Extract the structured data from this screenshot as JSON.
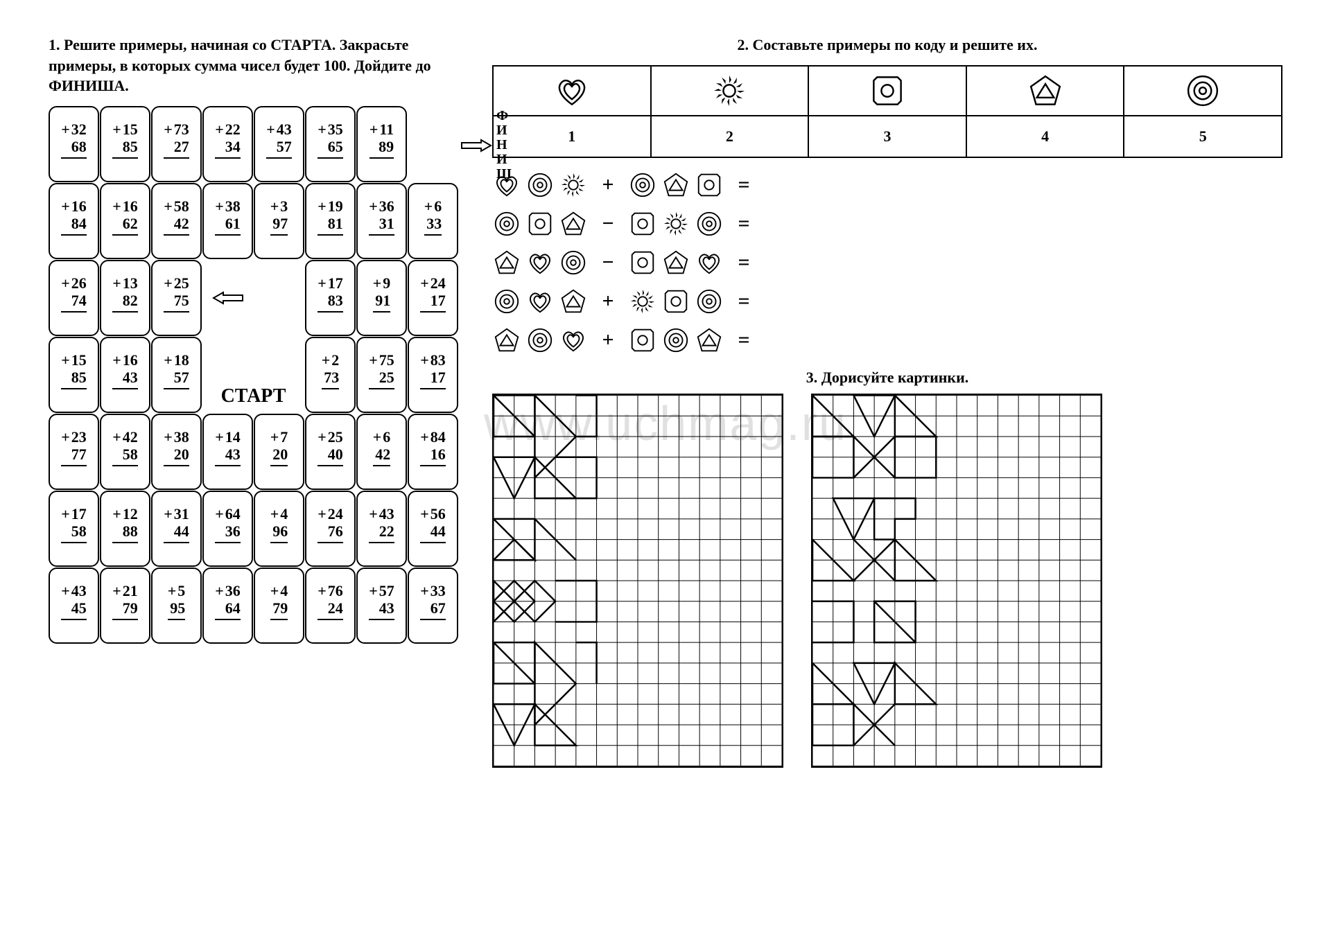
{
  "ex1": {
    "title": "1. Решите примеры, начиная со СТАРТА. Закрасьте примеры, в которых сумма чисел будет 100. Дойдите до ФИНИША.",
    "finish": "ФИНИШ",
    "start": "СТАРТ",
    "grid": [
      [
        [
          32,
          68
        ],
        [
          15,
          85
        ],
        [
          73,
          27
        ],
        [
          22,
          34
        ],
        [
          43,
          57
        ],
        [
          35,
          65
        ],
        [
          11,
          89
        ],
        null
      ],
      [
        [
          16,
          84
        ],
        [
          16,
          62
        ],
        [
          58,
          42
        ],
        [
          38,
          61
        ],
        [
          3,
          97
        ],
        [
          19,
          81
        ],
        [
          36,
          31
        ],
        [
          6,
          33
        ]
      ],
      [
        [
          26,
          74
        ],
        [
          13,
          82
        ],
        [
          25,
          75
        ],
        "arrow-left",
        null,
        [
          17,
          83
        ],
        [
          9,
          91
        ],
        [
          24,
          17
        ]
      ],
      [
        [
          15,
          85
        ],
        [
          16,
          43
        ],
        [
          18,
          57
        ],
        "start",
        "start",
        [
          2,
          73
        ],
        [
          75,
          25
        ],
        [
          83,
          17
        ]
      ],
      [
        [
          23,
          77
        ],
        [
          42,
          58
        ],
        [
          38,
          20
        ],
        [
          14,
          43
        ],
        [
          7,
          20
        ],
        [
          25,
          40
        ],
        [
          6,
          42
        ],
        [
          84,
          16
        ]
      ],
      [
        [
          17,
          58
        ],
        [
          12,
          88
        ],
        [
          31,
          44
        ],
        [
          64,
          36
        ],
        [
          4,
          96
        ],
        [
          24,
          76
        ],
        [
          43,
          22
        ],
        [
          56,
          44
        ]
      ],
      [
        [
          43,
          45
        ],
        [
          21,
          79
        ],
        [
          5,
          95
        ],
        [
          36,
          64
        ],
        [
          4,
          79
        ],
        [
          76,
          24
        ],
        [
          57,
          43
        ],
        [
          33,
          67
        ]
      ]
    ]
  },
  "ex2": {
    "title": "2. Составьте примеры по коду и решите их.",
    "legend": [
      "heart",
      "sun",
      "square",
      "pentagon",
      "circle"
    ],
    "numbers": [
      "1",
      "2",
      "3",
      "4",
      "5"
    ],
    "equations": [
      {
        "left": [
          "heart",
          "circle",
          "sun"
        ],
        "op": "+",
        "right": [
          "circle",
          "pentagon",
          "square"
        ]
      },
      {
        "left": [
          "circle",
          "square",
          "pentagon"
        ],
        "op": "−",
        "right": [
          "square",
          "sun",
          "circle"
        ]
      },
      {
        "left": [
          "pentagon",
          "heart",
          "circle"
        ],
        "op": "−",
        "right": [
          "square",
          "pentagon",
          "heart"
        ]
      },
      {
        "left": [
          "circle",
          "heart",
          "pentagon"
        ],
        "op": "+",
        "right": [
          "sun",
          "square",
          "circle"
        ]
      },
      {
        "left": [
          "pentagon",
          "circle",
          "heart"
        ],
        "op": "+",
        "right": [
          "square",
          "circle",
          "pentagon"
        ]
      }
    ]
  },
  "ex3": {
    "title": "3. Дорисуйте картинки.",
    "grid_cols": 14,
    "grid_rows": 18,
    "cell": 30,
    "pattern1": [
      "M0,0 L2,0 L2,2 L0,2 Z",
      "M0,0 L2,2",
      "M2,0 L4,2 L2,4 Z",
      "M4,0 L5,0 L5,2 L4,2",
      "M0,3 L2,3 L1,5 Z",
      "M2,3 L4,5 L2,5 Z",
      "M3,3 L5,3 L5,5 L3,5",
      "M0,6 L2,6 L2,8 Z",
      "M2,6 L4,8",
      "M0,8 L1,7 L2,8 Z",
      "M0,9 L1,10 L0,11 Z",
      "M1,9 L2,10 L1,11 L0,10 Z",
      "M2,9 L3,10 L2,11 L1,10 Z",
      "M3,9 L5,9 L5,11 L3,11",
      "M0,12 L2,12 L2,14 L0,14 Z",
      "M0,12 L2,14",
      "M2,12 L4,14 L2,16 Z",
      "M4,12 L5,12 L5,14",
      "M0,15 L2,15 L1,17 Z",
      "M2,15 L4,17 L2,17 Z"
    ],
    "pattern2": [
      "M0,0 L2,2 L0,2 Z",
      "M2,0 L4,0 L3,2 Z",
      "M4,0 L6,2 L4,2 Z",
      "M0,2 L2,2 L2,4 L0,4 Z",
      "M2,2 L4,4",
      "M4,2 L2,4",
      "M4,2 L6,2 L6,4 L4,4 Z",
      "M1,5 L3,5 L2,7 Z",
      "M3,5 L5,5 L5,6 L4,6 L4,7 L3,7 Z",
      "M0,7 L2,9 L0,9 Z",
      "M2,7 L4,9",
      "M4,7 L2,9",
      "M4,7 L6,9 L4,9 Z",
      "M0,10 L2,10 L2,12 L0,12",
      "M3,10 L5,10 L5,12 L3,12 Z",
      "M3,10 L5,12",
      "M0,13 L2,15 L0,15 Z",
      "M2,13 L4,13 L3,15 Z",
      "M4,13 L6,15 L4,15 Z",
      "M0,15 L2,15 L2,17 L0,17 Z",
      "M2,15 L4,17",
      "M4,15 L2,17"
    ]
  },
  "watermark": "www.uchmag.ru",
  "style": {
    "stroke": "#000",
    "stroke_width": 2,
    "bg": "#ffffff",
    "font": "Times New Roman"
  }
}
